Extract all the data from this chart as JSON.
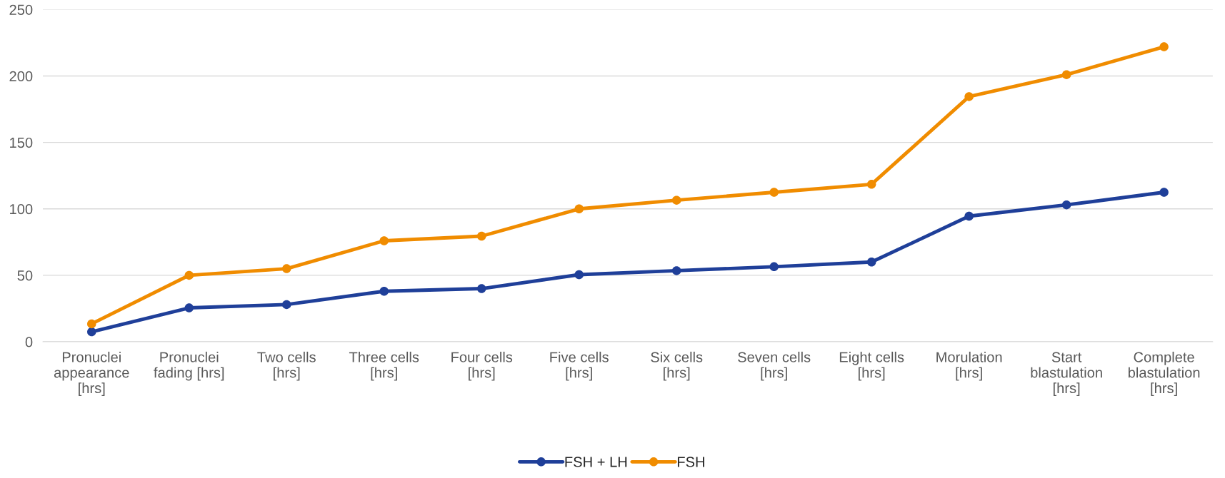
{
  "chart_data": {
    "type": "line",
    "categories": [
      "Pronuclei appearance [hrs]",
      "Pronuclei fading [hrs]",
      "Two cells [hrs]",
      "Three cells [hrs]",
      "Four cells [hrs]",
      "Five cells [hrs]",
      "Six cells [hrs]",
      "Seven cells [hrs]",
      "Eight cells [hrs]",
      "Morulation [hrs]",
      "Start blastulation [hrs]",
      "Complete blastulation [hrs]"
    ],
    "series": [
      {
        "name": "FSH + LH",
        "color": "#1f3f99",
        "values": [
          7.5,
          25.5,
          28,
          38,
          40,
          50.5,
          53.5,
          56.5,
          60,
          94.5,
          103,
          112.5
        ]
      },
      {
        "name": "FSH",
        "color": "#f08c00",
        "values": [
          13.5,
          50,
          55,
          76,
          79.5,
          100,
          106.5,
          112.5,
          118.5,
          184.5,
          201,
          222
        ]
      }
    ],
    "ylim": [
      0,
      250
    ],
    "yticks": [
      0,
      50,
      100,
      150,
      200,
      250
    ],
    "grid": "y",
    "legend": "bottom",
    "marker": "circle",
    "line_style": "solid"
  }
}
